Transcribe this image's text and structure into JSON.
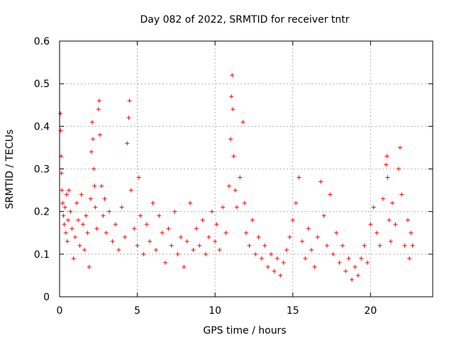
{
  "chart_data": {
    "type": "scatter",
    "title": "Day 082 of 2022, SRMTID for receiver tntr",
    "xlabel": "GPS time / hours",
    "ylabel": "SRMTID / TECUs",
    "xlim": [
      0,
      24
    ],
    "ylim": [
      0,
      0.6
    ],
    "x_ticks": [
      0,
      5,
      10,
      15,
      20
    ],
    "x_tick_labels": [
      "0",
      "5",
      "10",
      "15",
      "20"
    ],
    "y_ticks": [
      0,
      0.1,
      0.2,
      0.3,
      0.4,
      0.5,
      0.6
    ],
    "y_tick_labels": [
      "0",
      "0.1",
      "0.2",
      "0.3",
      "0.4",
      "0.5",
      "0.6"
    ],
    "grid": true,
    "marker": "+",
    "marker_color": "#ff0000",
    "series": [
      {
        "name": "SRMTID",
        "points": [
          [
            0.05,
            0.43
          ],
          [
            0.07,
            0.39
          ],
          [
            0.1,
            0.33
          ],
          [
            0.12,
            0.29
          ],
          [
            0.15,
            0.25
          ],
          [
            0.2,
            0.22
          ],
          [
            0.25,
            0.19
          ],
          [
            0.3,
            0.17
          ],
          [
            0.35,
            0.21
          ],
          [
            0.4,
            0.15
          ],
          [
            0.45,
            0.24
          ],
          [
            0.5,
            0.13
          ],
          [
            0.55,
            0.18
          ],
          [
            0.6,
            0.25
          ],
          [
            0.7,
            0.2
          ],
          [
            0.8,
            0.16
          ],
          [
            0.9,
            0.09
          ],
          [
            1.0,
            0.14
          ],
          [
            1.1,
            0.22
          ],
          [
            1.2,
            0.18
          ],
          [
            1.3,
            0.12
          ],
          [
            1.4,
            0.24
          ],
          [
            1.5,
            0.17
          ],
          [
            1.6,
            0.11
          ],
          [
            1.7,
            0.19
          ],
          [
            1.8,
            0.15
          ],
          [
            1.9,
            0.07
          ],
          [
            2.0,
            0.23
          ],
          [
            2.05,
            0.34
          ],
          [
            2.1,
            0.41
          ],
          [
            2.15,
            0.37
          ],
          [
            2.2,
            0.3
          ],
          [
            2.25,
            0.26
          ],
          [
            2.3,
            0.21
          ],
          [
            2.4,
            0.16
          ],
          [
            2.5,
            0.44
          ],
          [
            2.55,
            0.46
          ],
          [
            2.6,
            0.38
          ],
          [
            2.7,
            0.26
          ],
          [
            2.8,
            0.19
          ],
          [
            2.9,
            0.23
          ],
          [
            3.0,
            0.15
          ],
          [
            3.2,
            0.2
          ],
          [
            3.4,
            0.13
          ],
          [
            3.6,
            0.17
          ],
          [
            3.8,
            0.11
          ],
          [
            4.0,
            0.21
          ],
          [
            4.2,
            0.14
          ],
          [
            4.35,
            0.36
          ],
          [
            4.45,
            0.42
          ],
          [
            4.5,
            0.46
          ],
          [
            4.6,
            0.25
          ],
          [
            4.8,
            0.16
          ],
          [
            5.0,
            0.12
          ],
          [
            5.1,
            0.28
          ],
          [
            5.2,
            0.19
          ],
          [
            5.4,
            0.1
          ],
          [
            5.6,
            0.17
          ],
          [
            5.8,
            0.13
          ],
          [
            6.0,
            0.22
          ],
          [
            6.2,
            0.11
          ],
          [
            6.4,
            0.19
          ],
          [
            6.6,
            0.15
          ],
          [
            6.8,
            0.08
          ],
          [
            7.0,
            0.16
          ],
          [
            7.2,
            0.12
          ],
          [
            7.4,
            0.2
          ],
          [
            7.6,
            0.1
          ],
          [
            7.8,
            0.14
          ],
          [
            8.0,
            0.07
          ],
          [
            8.2,
            0.13
          ],
          [
            8.4,
            0.22
          ],
          [
            8.6,
            0.11
          ],
          [
            8.8,
            0.16
          ],
          [
            9.0,
            0.12
          ],
          [
            9.2,
            0.18
          ],
          [
            9.4,
            0.1
          ],
          [
            9.6,
            0.14
          ],
          [
            9.8,
            0.2
          ],
          [
            10.0,
            0.13
          ],
          [
            10.1,
            0.17
          ],
          [
            10.3,
            0.11
          ],
          [
            10.5,
            0.21
          ],
          [
            10.7,
            0.15
          ],
          [
            10.9,
            0.26
          ],
          [
            11.0,
            0.37
          ],
          [
            11.05,
            0.47
          ],
          [
            11.1,
            0.52
          ],
          [
            11.15,
            0.44
          ],
          [
            11.2,
            0.33
          ],
          [
            11.3,
            0.25
          ],
          [
            11.4,
            0.21
          ],
          [
            11.6,
            0.28
          ],
          [
            11.8,
            0.41
          ],
          [
            11.9,
            0.22
          ],
          [
            12.0,
            0.15
          ],
          [
            12.2,
            0.12
          ],
          [
            12.4,
            0.18
          ],
          [
            12.6,
            0.1
          ],
          [
            12.8,
            0.14
          ],
          [
            13.0,
            0.09
          ],
          [
            13.2,
            0.12
          ],
          [
            13.4,
            0.07
          ],
          [
            13.6,
            0.1
          ],
          [
            13.8,
            0.06
          ],
          [
            14.0,
            0.09
          ],
          [
            14.2,
            0.05
          ],
          [
            14.4,
            0.08
          ],
          [
            14.6,
            0.11
          ],
          [
            14.8,
            0.14
          ],
          [
            15.0,
            0.18
          ],
          [
            15.2,
            0.22
          ],
          [
            15.4,
            0.28
          ],
          [
            15.6,
            0.13
          ],
          [
            15.8,
            0.09
          ],
          [
            16.0,
            0.16
          ],
          [
            16.2,
            0.11
          ],
          [
            16.4,
            0.07
          ],
          [
            16.6,
            0.14
          ],
          [
            16.8,
            0.27
          ],
          [
            17.0,
            0.19
          ],
          [
            17.2,
            0.12
          ],
          [
            17.4,
            0.24
          ],
          [
            17.6,
            0.1
          ],
          [
            17.8,
            0.15
          ],
          [
            18.0,
            0.08
          ],
          [
            18.2,
            0.12
          ],
          [
            18.4,
            0.06
          ],
          [
            18.6,
            0.09
          ],
          [
            18.8,
            0.04
          ],
          [
            19.0,
            0.07
          ],
          [
            19.2,
            0.05
          ],
          [
            19.4,
            0.09
          ],
          [
            19.6,
            0.12
          ],
          [
            19.8,
            0.08
          ],
          [
            20.0,
            0.17
          ],
          [
            20.2,
            0.21
          ],
          [
            20.4,
            0.15
          ],
          [
            20.6,
            0.12
          ],
          [
            20.8,
            0.23
          ],
          [
            21.0,
            0.31
          ],
          [
            21.05,
            0.33
          ],
          [
            21.1,
            0.28
          ],
          [
            21.2,
            0.18
          ],
          [
            21.3,
            0.13
          ],
          [
            21.4,
            0.22
          ],
          [
            21.6,
            0.17
          ],
          [
            21.8,
            0.3
          ],
          [
            21.9,
            0.35
          ],
          [
            22.0,
            0.24
          ],
          [
            22.2,
            0.12
          ],
          [
            22.4,
            0.18
          ],
          [
            22.5,
            0.09
          ],
          [
            22.6,
            0.15
          ],
          [
            22.7,
            0.12
          ]
        ]
      }
    ]
  }
}
